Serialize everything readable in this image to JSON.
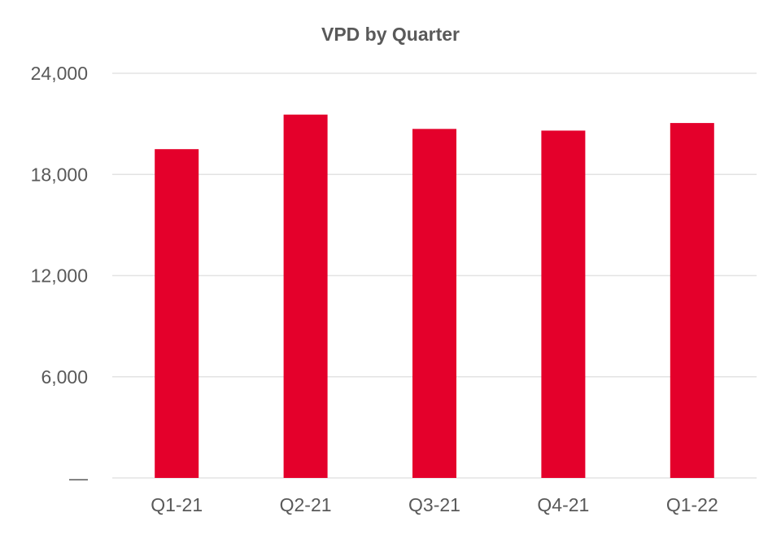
{
  "chart_data": {
    "type": "bar",
    "title": "VPD by Quarter",
    "xlabel": "",
    "ylabel": "",
    "categories": [
      "Q1-21",
      "Q2-21",
      "Q3-21",
      "Q4-21",
      "Q1-22"
    ],
    "values": [
      19500,
      21550,
      20700,
      20600,
      21050
    ],
    "ylim": [
      0,
      24000
    ],
    "yticks": [
      0,
      6000,
      12000,
      18000,
      24000
    ],
    "ytick_labels": [
      "—",
      "6,000",
      "12,000",
      "18,000",
      "24,000"
    ],
    "grid": true,
    "legend": "none",
    "colors": {
      "bar": "#e4002b",
      "grid": "#e3e3e3",
      "text": "#595959"
    }
  }
}
